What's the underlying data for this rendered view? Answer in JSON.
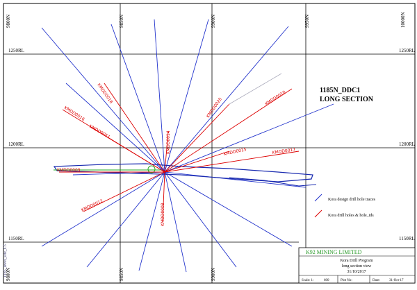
{
  "grid": {
    "columns": [
      "9800N",
      "9850N",
      "9900N",
      "9950N",
      "10000N"
    ],
    "rows": [
      "1250RL",
      "1200RL",
      "1150RL"
    ]
  },
  "section": {
    "title": "1185N_DDC1",
    "subtitle": "LONG SECTION"
  },
  "holes": [
    "KMDD0018",
    "KMDD0016",
    "KMDD0011",
    "KMDD0020",
    "KMDD0010",
    "KMDD0014",
    "KMDD0015",
    "KMDD0017",
    "KMDD0009",
    "KMDD0012",
    "KMDD0008"
  ],
  "legend": [
    "Kora design drill hole traces",
    "Kora drill holes & hole_ids"
  ],
  "side_note": "1185_level_site_C5",
  "title_block": {
    "company": "K92 MINING LIMITED",
    "project": "Kora Drill Program",
    "view": "long section view",
    "date": "31/10/2017",
    "scale_label": "Scale: 1:",
    "scale": "600",
    "plot_label": "Plot No:",
    "date_label": "Date:",
    "plot_date": "31-Oct-17"
  }
}
